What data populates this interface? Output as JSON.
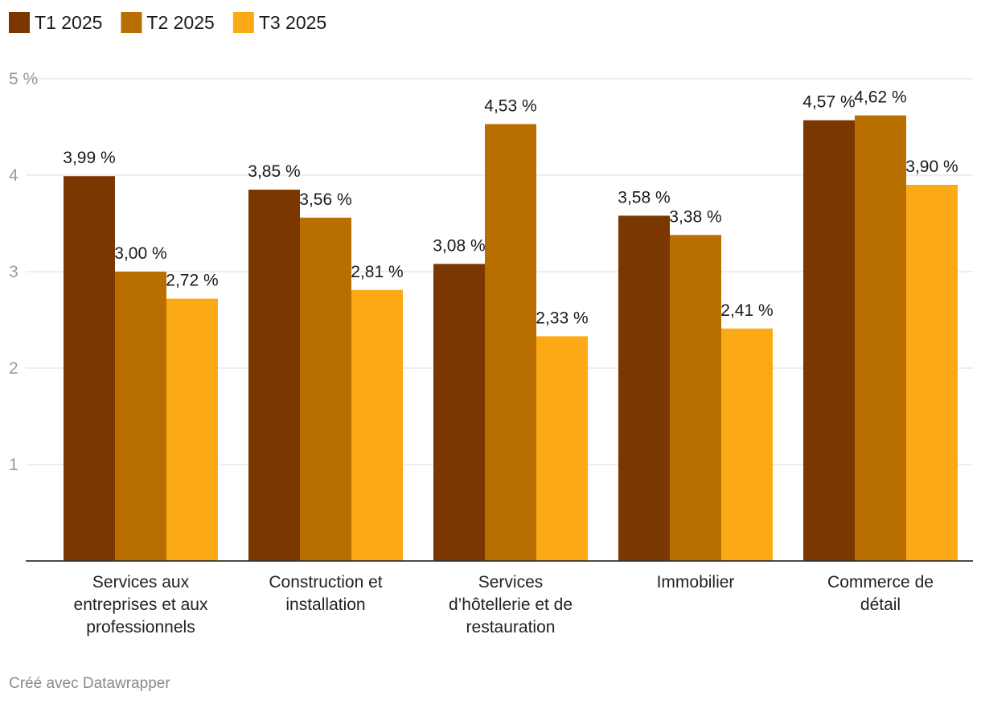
{
  "chart_data": {
    "type": "bar",
    "title": "",
    "xlabel": "",
    "ylabel": "",
    "ylim": [
      0,
      5
    ],
    "yticks": [
      1,
      2,
      3,
      4,
      5
    ],
    "ytick_labels": [
      "1",
      "2",
      "3",
      "4",
      "5 %"
    ],
    "grid": true,
    "legend_position": "top-left",
    "categories": [
      [
        "Services aux",
        "entreprises et aux",
        "professionnels"
      ],
      [
        "Construction et",
        "installation"
      ],
      [
        "Services",
        "d’hôtellerie et de",
        "restauration"
      ],
      [
        "Immobilier"
      ],
      [
        "Commerce de",
        "détail"
      ]
    ],
    "series": [
      {
        "name": "T1 2025",
        "color": "#7a3700",
        "values": [
          3.99,
          3.85,
          3.08,
          3.58,
          4.57
        ],
        "labels": [
          "3,99 %",
          "3,85 %",
          "3,08 %",
          "3,58 %",
          "4,57 %"
        ]
      },
      {
        "name": "T2 2025",
        "color": "#b86f00",
        "values": [
          3.0,
          3.56,
          4.53,
          3.38,
          4.62
        ],
        "labels": [
          "3,00 %",
          "3,56 %",
          "4,53 %",
          "3,38 %",
          "4,62 %"
        ]
      },
      {
        "name": "T3 2025",
        "color": "#fca916",
        "values": [
          2.72,
          2.81,
          2.33,
          2.41,
          3.9
        ],
        "labels": [
          "2,72 %",
          "2,81 %",
          "2,33 %",
          "2,41 %",
          "3,90 %"
        ]
      }
    ]
  },
  "footer": {
    "credit": "Créé avec Datawrapper"
  }
}
